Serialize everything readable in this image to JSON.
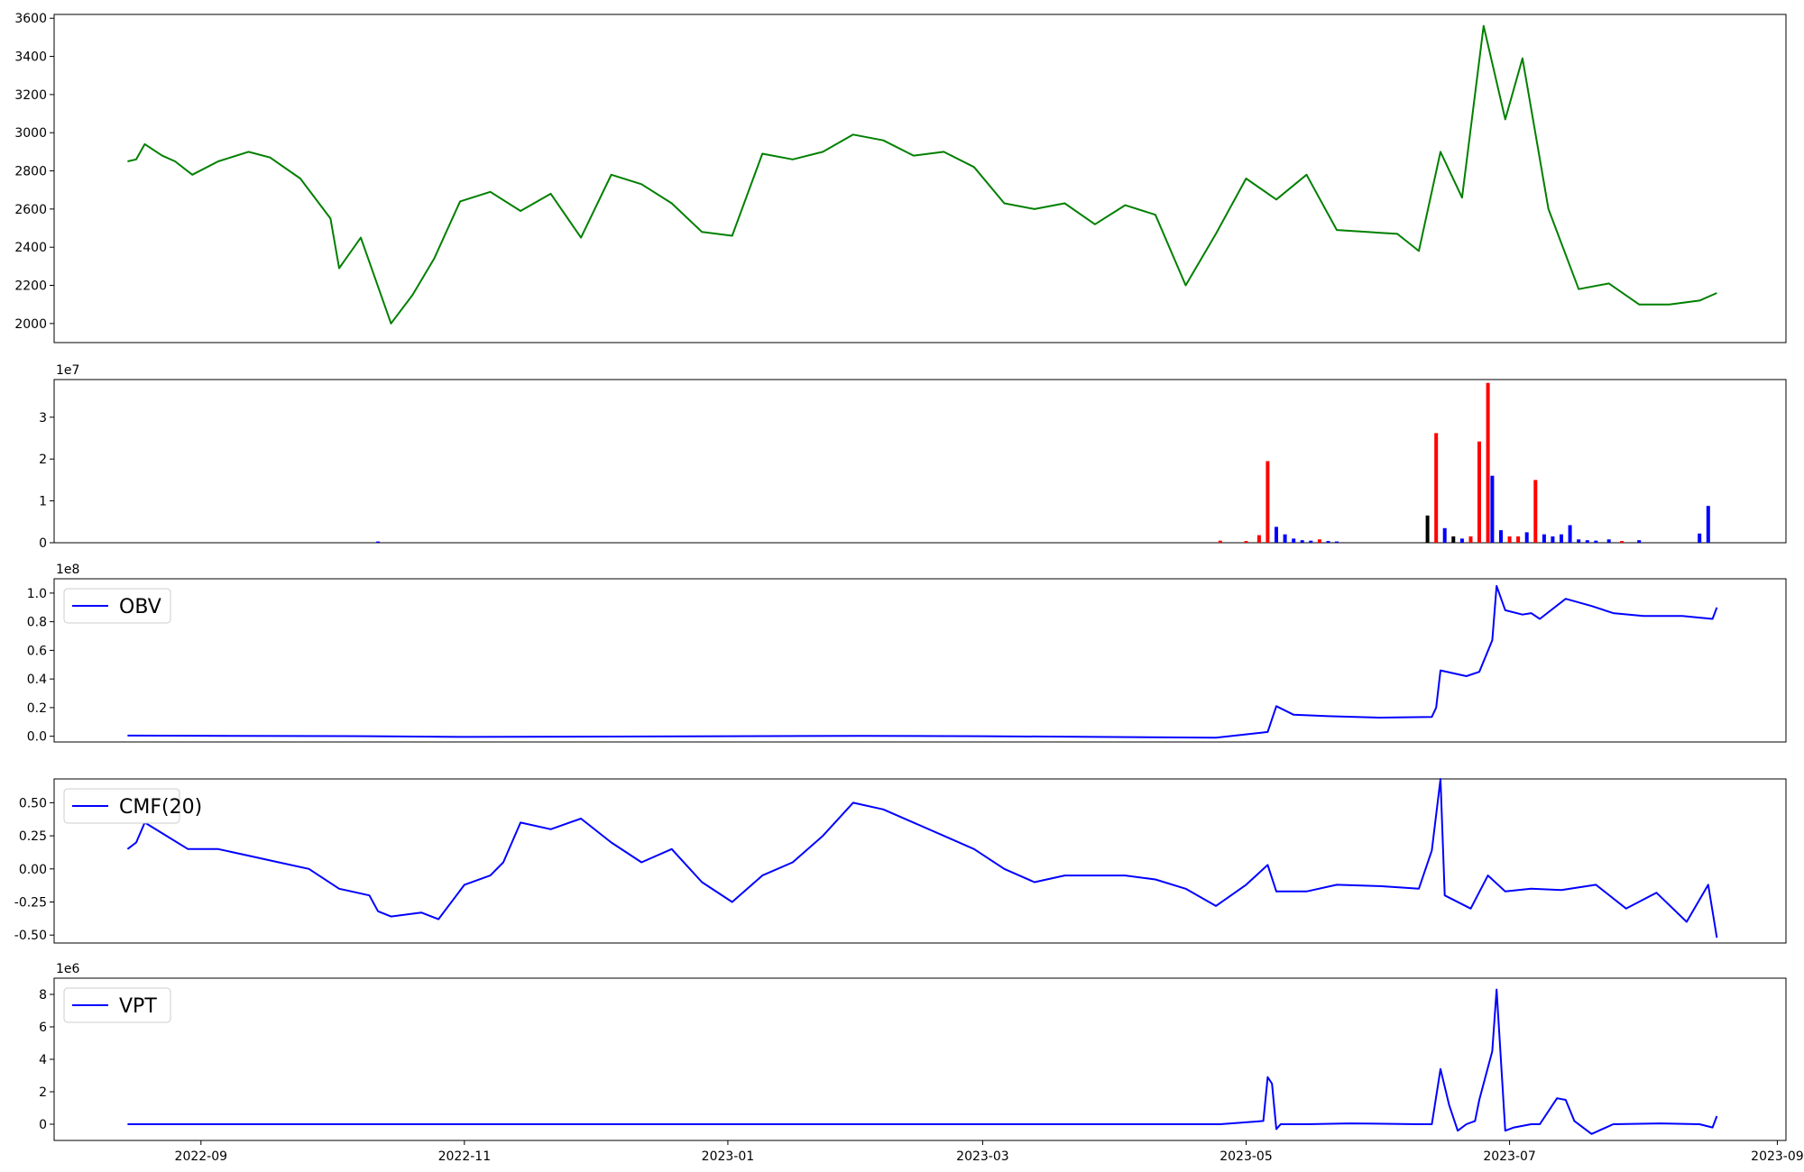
{
  "colors": {
    "price": "#008000",
    "volume_up": "#ff0000",
    "volume_down": "#0000ff",
    "volume_flat": "#000000",
    "indicator": "#0000ff"
  },
  "x_axis": {
    "type": "date",
    "range": [
      "2022-07-29",
      "2023-09-03"
    ],
    "ticks": [
      "2022-09",
      "2022-11",
      "2023-01",
      "2023-03",
      "2023-05",
      "2023-07",
      "2023-09"
    ],
    "tick_dates": [
      "2022-09-01",
      "2022-11-01",
      "2023-01-01",
      "2023-03-01",
      "2023-05-01",
      "2023-07-01",
      "2023-09-01"
    ]
  },
  "chart_data": [
    {
      "type": "line",
      "name": "price",
      "color": "#008000",
      "ylim": [
        1900,
        3620
      ],
      "yticks": [
        2000,
        2200,
        2400,
        2600,
        2800,
        3000,
        3200,
        3400,
        3600
      ],
      "x": [
        "2022-08-15",
        "2022-08-17",
        "2022-08-19",
        "2022-08-23",
        "2022-08-26",
        "2022-08-30",
        "2022-09-05",
        "2022-09-12",
        "2022-09-17",
        "2022-09-24",
        "2022-10-01",
        "2022-10-03",
        "2022-10-08",
        "2022-10-15",
        "2022-10-20",
        "2022-10-25",
        "2022-10-31",
        "2022-11-07",
        "2022-11-14",
        "2022-11-21",
        "2022-11-28",
        "2022-12-05",
        "2022-12-12",
        "2022-12-19",
        "2022-12-26",
        "2023-01-02",
        "2023-01-09",
        "2023-01-16",
        "2023-01-23",
        "2023-01-30",
        "2023-02-06",
        "2023-02-13",
        "2023-02-20",
        "2023-02-27",
        "2023-03-06",
        "2023-03-13",
        "2023-03-20",
        "2023-03-27",
        "2023-04-03",
        "2023-04-10",
        "2023-04-17",
        "2023-04-24",
        "2023-05-01",
        "2023-05-08",
        "2023-05-15",
        "2023-05-22",
        "2023-05-29",
        "2023-06-05",
        "2023-06-10",
        "2023-06-15",
        "2023-06-20",
        "2023-06-25",
        "2023-06-30",
        "2023-07-04",
        "2023-07-10",
        "2023-07-17",
        "2023-07-24",
        "2023-07-31",
        "2023-08-07",
        "2023-08-14",
        "2023-08-18"
      ],
      "y": [
        2850,
        2860,
        2940,
        2880,
        2850,
        2780,
        2850,
        2900,
        2870,
        2760,
        2550,
        2290,
        2450,
        2000,
        2150,
        2340,
        2640,
        2690,
        2590,
        2680,
        2450,
        2780,
        2730,
        2630,
        2480,
        2460,
        2890,
        2860,
        2900,
        2990,
        2960,
        2880,
        2900,
        2820,
        2630,
        2600,
        2630,
        2520,
        2620,
        2570,
        2200,
        2470,
        2760,
        2650,
        2780,
        2490,
        2480,
        2470,
        2380,
        2900,
        2660,
        3560,
        3070,
        3390,
        2600,
        2180,
        2210,
        2100,
        2100,
        2120,
        2160
      ]
    },
    {
      "type": "bar",
      "name": "volume",
      "yscale_label": "1e7",
      "ylim": [
        0,
        3.9
      ],
      "yticks": [
        0,
        1,
        2,
        3
      ],
      "x": [
        "2022-10-12",
        "2023-04-25",
        "2023-05-01",
        "2023-05-04",
        "2023-05-06",
        "2023-05-08",
        "2023-05-10",
        "2023-05-12",
        "2023-05-14",
        "2023-05-16",
        "2023-05-18",
        "2023-05-20",
        "2023-05-22",
        "2023-06-12",
        "2023-06-14",
        "2023-06-16",
        "2023-06-18",
        "2023-06-20",
        "2023-06-22",
        "2023-06-24",
        "2023-06-26",
        "2023-06-27",
        "2023-06-29",
        "2023-07-01",
        "2023-07-03",
        "2023-07-05",
        "2023-07-07",
        "2023-07-09",
        "2023-07-11",
        "2023-07-13",
        "2023-07-15",
        "2023-07-17",
        "2023-07-19",
        "2023-07-21",
        "2023-07-24",
        "2023-07-27",
        "2023-07-31",
        "2023-08-14",
        "2023-08-16"
      ],
      "values": [
        0.03,
        0.05,
        0.04,
        0.18,
        1.95,
        0.38,
        0.2,
        0.1,
        0.06,
        0.05,
        0.08,
        0.04,
        0.03,
        0.65,
        2.62,
        0.35,
        0.15,
        0.1,
        0.15,
        2.42,
        3.82,
        1.6,
        0.3,
        0.15,
        0.15,
        0.25,
        1.5,
        0.2,
        0.15,
        0.2,
        0.42,
        0.08,
        0.06,
        0.05,
        0.08,
        0.04,
        0.06,
        0.22,
        0.88
      ],
      "colors": [
        "b",
        "r",
        "r",
        "r",
        "r",
        "b",
        "b",
        "b",
        "b",
        "b",
        "r",
        "b",
        "b",
        "k",
        "r",
        "b",
        "k",
        "b",
        "r",
        "r",
        "r",
        "b",
        "b",
        "r",
        "r",
        "b",
        "r",
        "b",
        "b",
        "b",
        "b",
        "b",
        "b",
        "b",
        "b",
        "r",
        "b",
        "b",
        "b"
      ]
    },
    {
      "type": "line",
      "name": "OBV",
      "legend": "OBV",
      "color": "#0000ff",
      "ylim": [
        -0.04,
        1.1
      ],
      "yticks": [
        0.0,
        0.2,
        0.4,
        0.6,
        0.8,
        1.0
      ],
      "yscale_label": "1e8",
      "x": [
        "2022-08-15",
        "2022-10-10",
        "2022-11-01",
        "2023-01-01",
        "2023-02-01",
        "2023-03-01",
        "2023-04-24",
        "2023-05-06",
        "2023-05-08",
        "2023-05-12",
        "2023-05-20",
        "2023-06-01",
        "2023-06-13",
        "2023-06-14",
        "2023-06-15",
        "2023-06-21",
        "2023-06-24",
        "2023-06-27",
        "2023-06-28",
        "2023-06-30",
        "2023-07-04",
        "2023-07-06",
        "2023-07-08",
        "2023-07-14",
        "2023-07-20",
        "2023-07-25",
        "2023-08-01",
        "2023-08-10",
        "2023-08-17",
        "2023-08-18"
      ],
      "y": [
        0.005,
        0.0,
        -0.005,
        0.0,
        0.003,
        0.0,
        -0.01,
        0.03,
        0.21,
        0.15,
        0.14,
        0.13,
        0.135,
        0.2,
        0.46,
        0.42,
        0.45,
        0.67,
        1.05,
        0.88,
        0.85,
        0.86,
        0.82,
        0.96,
        0.91,
        0.86,
        0.84,
        0.84,
        0.82,
        0.9
      ]
    },
    {
      "type": "line",
      "name": "CMF(20)",
      "legend": "CMF(20)",
      "color": "#0000ff",
      "ylim": [
        -0.56,
        0.68
      ],
      "yticks": [
        -0.5,
        -0.25,
        0.0,
        0.25,
        0.5
      ],
      "x": [
        "2022-08-15",
        "2022-08-17",
        "2022-08-19",
        "2022-08-24",
        "2022-08-29",
        "2022-09-05",
        "2022-09-12",
        "2022-09-19",
        "2022-09-26",
        "2022-10-03",
        "2022-10-10",
        "2022-10-12",
        "2022-10-15",
        "2022-10-22",
        "2022-10-26",
        "2022-11-01",
        "2022-11-07",
        "2022-11-10",
        "2022-11-14",
        "2022-11-21",
        "2022-11-28",
        "2022-12-05",
        "2022-12-12",
        "2022-12-19",
        "2022-12-26",
        "2023-01-02",
        "2023-01-09",
        "2023-01-16",
        "2023-01-23",
        "2023-01-30",
        "2023-02-06",
        "2023-02-13",
        "2023-02-20",
        "2023-02-27",
        "2023-03-06",
        "2023-03-13",
        "2023-03-20",
        "2023-03-27",
        "2023-04-03",
        "2023-04-10",
        "2023-04-17",
        "2023-04-24",
        "2023-05-01",
        "2023-05-06",
        "2023-05-08",
        "2023-05-15",
        "2023-05-22",
        "2023-06-01",
        "2023-06-10",
        "2023-06-13",
        "2023-06-15",
        "2023-06-16",
        "2023-06-22",
        "2023-06-26",
        "2023-06-30",
        "2023-07-06",
        "2023-07-13",
        "2023-07-21",
        "2023-07-28",
        "2023-08-04",
        "2023-08-11",
        "2023-08-16",
        "2023-08-18"
      ],
      "y": [
        0.15,
        0.2,
        0.35,
        0.25,
        0.15,
        0.15,
        0.1,
        0.05,
        0.0,
        -0.15,
        -0.2,
        -0.32,
        -0.36,
        -0.33,
        -0.38,
        -0.12,
        -0.05,
        0.05,
        0.35,
        0.3,
        0.38,
        0.2,
        0.05,
        0.15,
        -0.1,
        -0.25,
        -0.05,
        0.05,
        0.25,
        0.5,
        0.45,
        0.35,
        0.25,
        0.15,
        0.0,
        -0.1,
        -0.05,
        -0.05,
        -0.05,
        -0.08,
        -0.15,
        -0.28,
        -0.12,
        0.03,
        -0.17,
        -0.17,
        -0.12,
        -0.13,
        -0.15,
        0.14,
        0.68,
        -0.2,
        -0.3,
        -0.05,
        -0.17,
        -0.15,
        -0.16,
        -0.12,
        -0.3,
        -0.18,
        -0.4,
        -0.12,
        -0.52
      ]
    },
    {
      "type": "line",
      "name": "VPT",
      "legend": "VPT",
      "color": "#0000ff",
      "ylim": [
        -1.0,
        9.0
      ],
      "yticks": [
        0,
        2,
        4,
        6,
        8
      ],
      "yscale_label": "1e6",
      "x": [
        "2022-08-15",
        "2023-04-25",
        "2023-05-05",
        "2023-05-06",
        "2023-05-07",
        "2023-05-08",
        "2023-05-09",
        "2023-05-15",
        "2023-05-25",
        "2023-06-10",
        "2023-06-13",
        "2023-06-15",
        "2023-06-17",
        "2023-06-19",
        "2023-06-21",
        "2023-06-23",
        "2023-06-24",
        "2023-06-27",
        "2023-06-28",
        "2023-06-30",
        "2023-07-02",
        "2023-07-06",
        "2023-07-08",
        "2023-07-12",
        "2023-07-14",
        "2023-07-16",
        "2023-07-20",
        "2023-07-25",
        "2023-08-05",
        "2023-08-14",
        "2023-08-17",
        "2023-08-18"
      ],
      "y": [
        0.0,
        0.0,
        0.2,
        2.9,
        2.5,
        -0.3,
        0.0,
        0.0,
        0.05,
        0.0,
        0.0,
        3.4,
        1.2,
        -0.4,
        0.0,
        0.2,
        1.5,
        4.5,
        8.3,
        -0.4,
        -0.2,
        0.0,
        0.0,
        1.6,
        1.5,
        0.2,
        -0.6,
        0.0,
        0.05,
        0.0,
        -0.2,
        0.5
      ]
    }
  ]
}
